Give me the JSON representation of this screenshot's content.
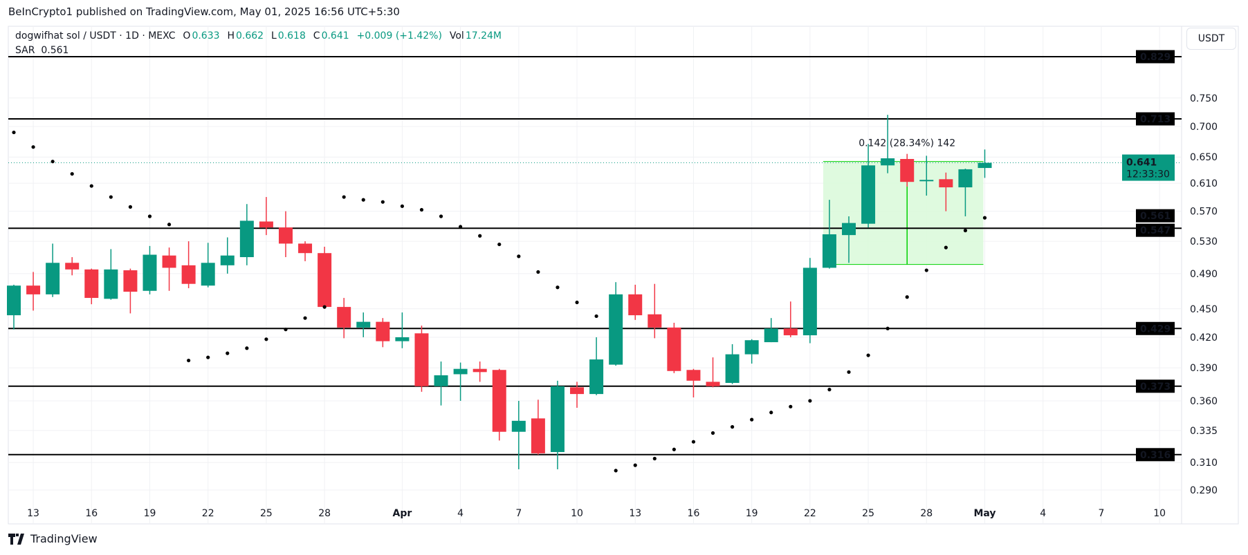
{
  "header": {
    "published": "BeInCrypto1 published on TradingView.com, May 01, 2025 16:56 UTC+5:30"
  },
  "legend": {
    "symbol": "dogwifhat sol / USDT · 1D · MEXC",
    "o_label": "O",
    "o": "0.633",
    "h_label": "H",
    "h": "0.662",
    "l_label": "L",
    "l": "0.618",
    "c_label": "C",
    "c": "0.641",
    "change": "+0.009 (+1.42%)",
    "vol_label": "Vol",
    "vol": "17.24M",
    "sar_label": "SAR",
    "sar": "0.561"
  },
  "currency_button": "USDT",
  "footer": {
    "brand": "TradingView"
  },
  "colors": {
    "up": "#089981",
    "down": "#f23645",
    "level": "#000000",
    "measure_fill": "#dcfadc",
    "measure_line": "#00d000"
  },
  "chart_data": {
    "type": "candlestick",
    "title": "",
    "y_scale": "log",
    "ylim": [
      0.28,
      0.85
    ],
    "y_ticks": [
      "0.750",
      "0.700",
      "0.650",
      "0.610",
      "0.570",
      "0.530",
      "0.490",
      "0.450",
      "0.420",
      "0.390",
      "0.360",
      "0.335",
      "0.310",
      "0.290"
    ],
    "x_ticks": [
      {
        "day": 1,
        "label": "13"
      },
      {
        "day": 4,
        "label": "16"
      },
      {
        "day": 7,
        "label": "19"
      },
      {
        "day": 10,
        "label": "22"
      },
      {
        "day": 13,
        "label": "25"
      },
      {
        "day": 16,
        "label": "28"
      },
      {
        "day": 20,
        "label": "Apr"
      },
      {
        "day": 23,
        "label": "4"
      },
      {
        "day": 26,
        "label": "7"
      },
      {
        "day": 29,
        "label": "10"
      },
      {
        "day": 32,
        "label": "13"
      },
      {
        "day": 35,
        "label": "16"
      },
      {
        "day": 38,
        "label": "19"
      },
      {
        "day": 41,
        "label": "22"
      },
      {
        "day": 44,
        "label": "25"
      },
      {
        "day": 47,
        "label": "28"
      },
      {
        "day": 50,
        "label": "May"
      },
      {
        "day": 53,
        "label": "4"
      },
      {
        "day": 56,
        "label": "7"
      },
      {
        "day": 59,
        "label": "10"
      }
    ],
    "first_date": "2025-03-12",
    "candles_ohlc": [
      [
        0.443,
        0.477,
        0.428,
        0.476
      ],
      [
        0.476,
        0.492,
        0.448,
        0.466
      ],
      [
        0.466,
        0.527,
        0.463,
        0.503
      ],
      [
        0.503,
        0.51,
        0.488,
        0.495
      ],
      [
        0.495,
        0.496,
        0.455,
        0.462
      ],
      [
        0.461,
        0.52,
        0.46,
        0.495
      ],
      [
        0.494,
        0.496,
        0.445,
        0.469
      ],
      [
        0.47,
        0.524,
        0.466,
        0.513
      ],
      [
        0.512,
        0.522,
        0.47,
        0.497
      ],
      [
        0.5,
        0.53,
        0.473,
        0.478
      ],
      [
        0.476,
        0.528,
        0.474,
        0.503
      ],
      [
        0.5,
        0.535,
        0.49,
        0.512
      ],
      [
        0.51,
        0.58,
        0.5,
        0.557
      ],
      [
        0.556,
        0.59,
        0.538,
        0.548
      ],
      [
        0.548,
        0.57,
        0.51,
        0.527
      ],
      [
        0.527,
        0.53,
        0.505,
        0.515
      ],
      [
        0.515,
        0.523,
        0.45,
        0.452
      ],
      [
        0.452,
        0.462,
        0.419,
        0.43
      ],
      [
        0.43,
        0.446,
        0.42,
        0.436
      ],
      [
        0.436,
        0.44,
        0.41,
        0.416
      ],
      [
        0.416,
        0.446,
        0.409,
        0.42
      ],
      [
        0.424,
        0.432,
        0.368,
        0.373
      ],
      [
        0.373,
        0.396,
        0.356,
        0.383
      ],
      [
        0.384,
        0.395,
        0.36,
        0.389
      ],
      [
        0.389,
        0.396,
        0.377,
        0.386
      ],
      [
        0.388,
        0.389,
        0.327,
        0.334
      ],
      [
        0.334,
        0.36,
        0.305,
        0.343
      ],
      [
        0.345,
        0.361,
        0.316,
        0.317
      ],
      [
        0.318,
        0.378,
        0.305,
        0.373
      ],
      [
        0.372,
        0.377,
        0.354,
        0.366
      ],
      [
        0.366,
        0.42,
        0.365,
        0.398
      ],
      [
        0.393,
        0.48,
        0.392,
        0.466
      ],
      [
        0.466,
        0.477,
        0.438,
        0.443
      ],
      [
        0.444,
        0.478,
        0.419,
        0.43
      ],
      [
        0.43,
        0.435,
        0.385,
        0.387
      ],
      [
        0.388,
        0.389,
        0.363,
        0.378
      ],
      [
        0.377,
        0.4,
        0.372,
        0.373
      ],
      [
        0.376,
        0.413,
        0.375,
        0.403
      ],
      [
        0.403,
        0.418,
        0.394,
        0.417
      ],
      [
        0.415,
        0.44,
        0.415,
        0.429
      ],
      [
        0.429,
        0.458,
        0.42,
        0.422
      ],
      [
        0.422,
        0.509,
        0.414,
        0.497
      ],
      [
        0.497,
        0.586,
        0.496,
        0.539
      ],
      [
        0.538,
        0.563,
        0.503,
        0.554
      ],
      [
        0.553,
        0.671,
        0.548,
        0.637
      ],
      [
        0.637,
        0.72,
        0.625,
        0.648
      ],
      [
        0.647,
        0.655,
        0.605,
        0.612
      ],
      [
        0.613,
        0.652,
        0.592,
        0.615
      ],
      [
        0.616,
        0.626,
        0.57,
        0.604
      ],
      [
        0.604,
        0.632,
        0.563,
        0.631
      ],
      [
        0.633,
        0.662,
        0.618,
        0.641
      ]
    ],
    "sar": [
      0.69,
      0.666,
      0.643,
      0.624,
      0.606,
      0.59,
      0.576,
      0.563,
      0.552,
      0.397,
      0.4,
      0.404,
      0.409,
      0.418,
      0.428,
      0.44,
      0.452,
      0.59,
      0.586,
      0.583,
      0.577,
      0.572,
      0.563,
      0.549,
      0.537,
      0.526,
      0.511,
      0.492,
      0.474,
      0.457,
      0.442,
      0.304,
      0.308,
      0.313,
      0.32,
      0.326,
      0.333,
      0.338,
      0.344,
      0.35,
      0.355,
      0.36,
      0.37,
      0.386,
      0.402,
      0.429,
      0.463,
      0.494,
      0.522,
      0.544,
      0.561
    ],
    "levels": [
      0.829,
      0.713,
      0.547,
      0.429,
      0.373,
      0.316
    ],
    "axis_labels": [
      {
        "value": 0.829,
        "text": "0.829"
      },
      {
        "value": 0.713,
        "text": "0.713"
      },
      {
        "value": 0.561,
        "text": "0.561"
      },
      {
        "value": 0.547,
        "text": "0.547"
      },
      {
        "value": 0.429,
        "text": "0.429"
      },
      {
        "value": 0.373,
        "text": "0.373"
      },
      {
        "value": 0.316,
        "text": "0.316"
      }
    ],
    "last_price": {
      "value": 0.641,
      "text": "0.641",
      "countdown": "12:33:30"
    },
    "measure": {
      "from_day": 42,
      "to_day": 50,
      "low": 0.501,
      "high": 0.643,
      "label": "0.142 (28.34%) 142"
    }
  }
}
